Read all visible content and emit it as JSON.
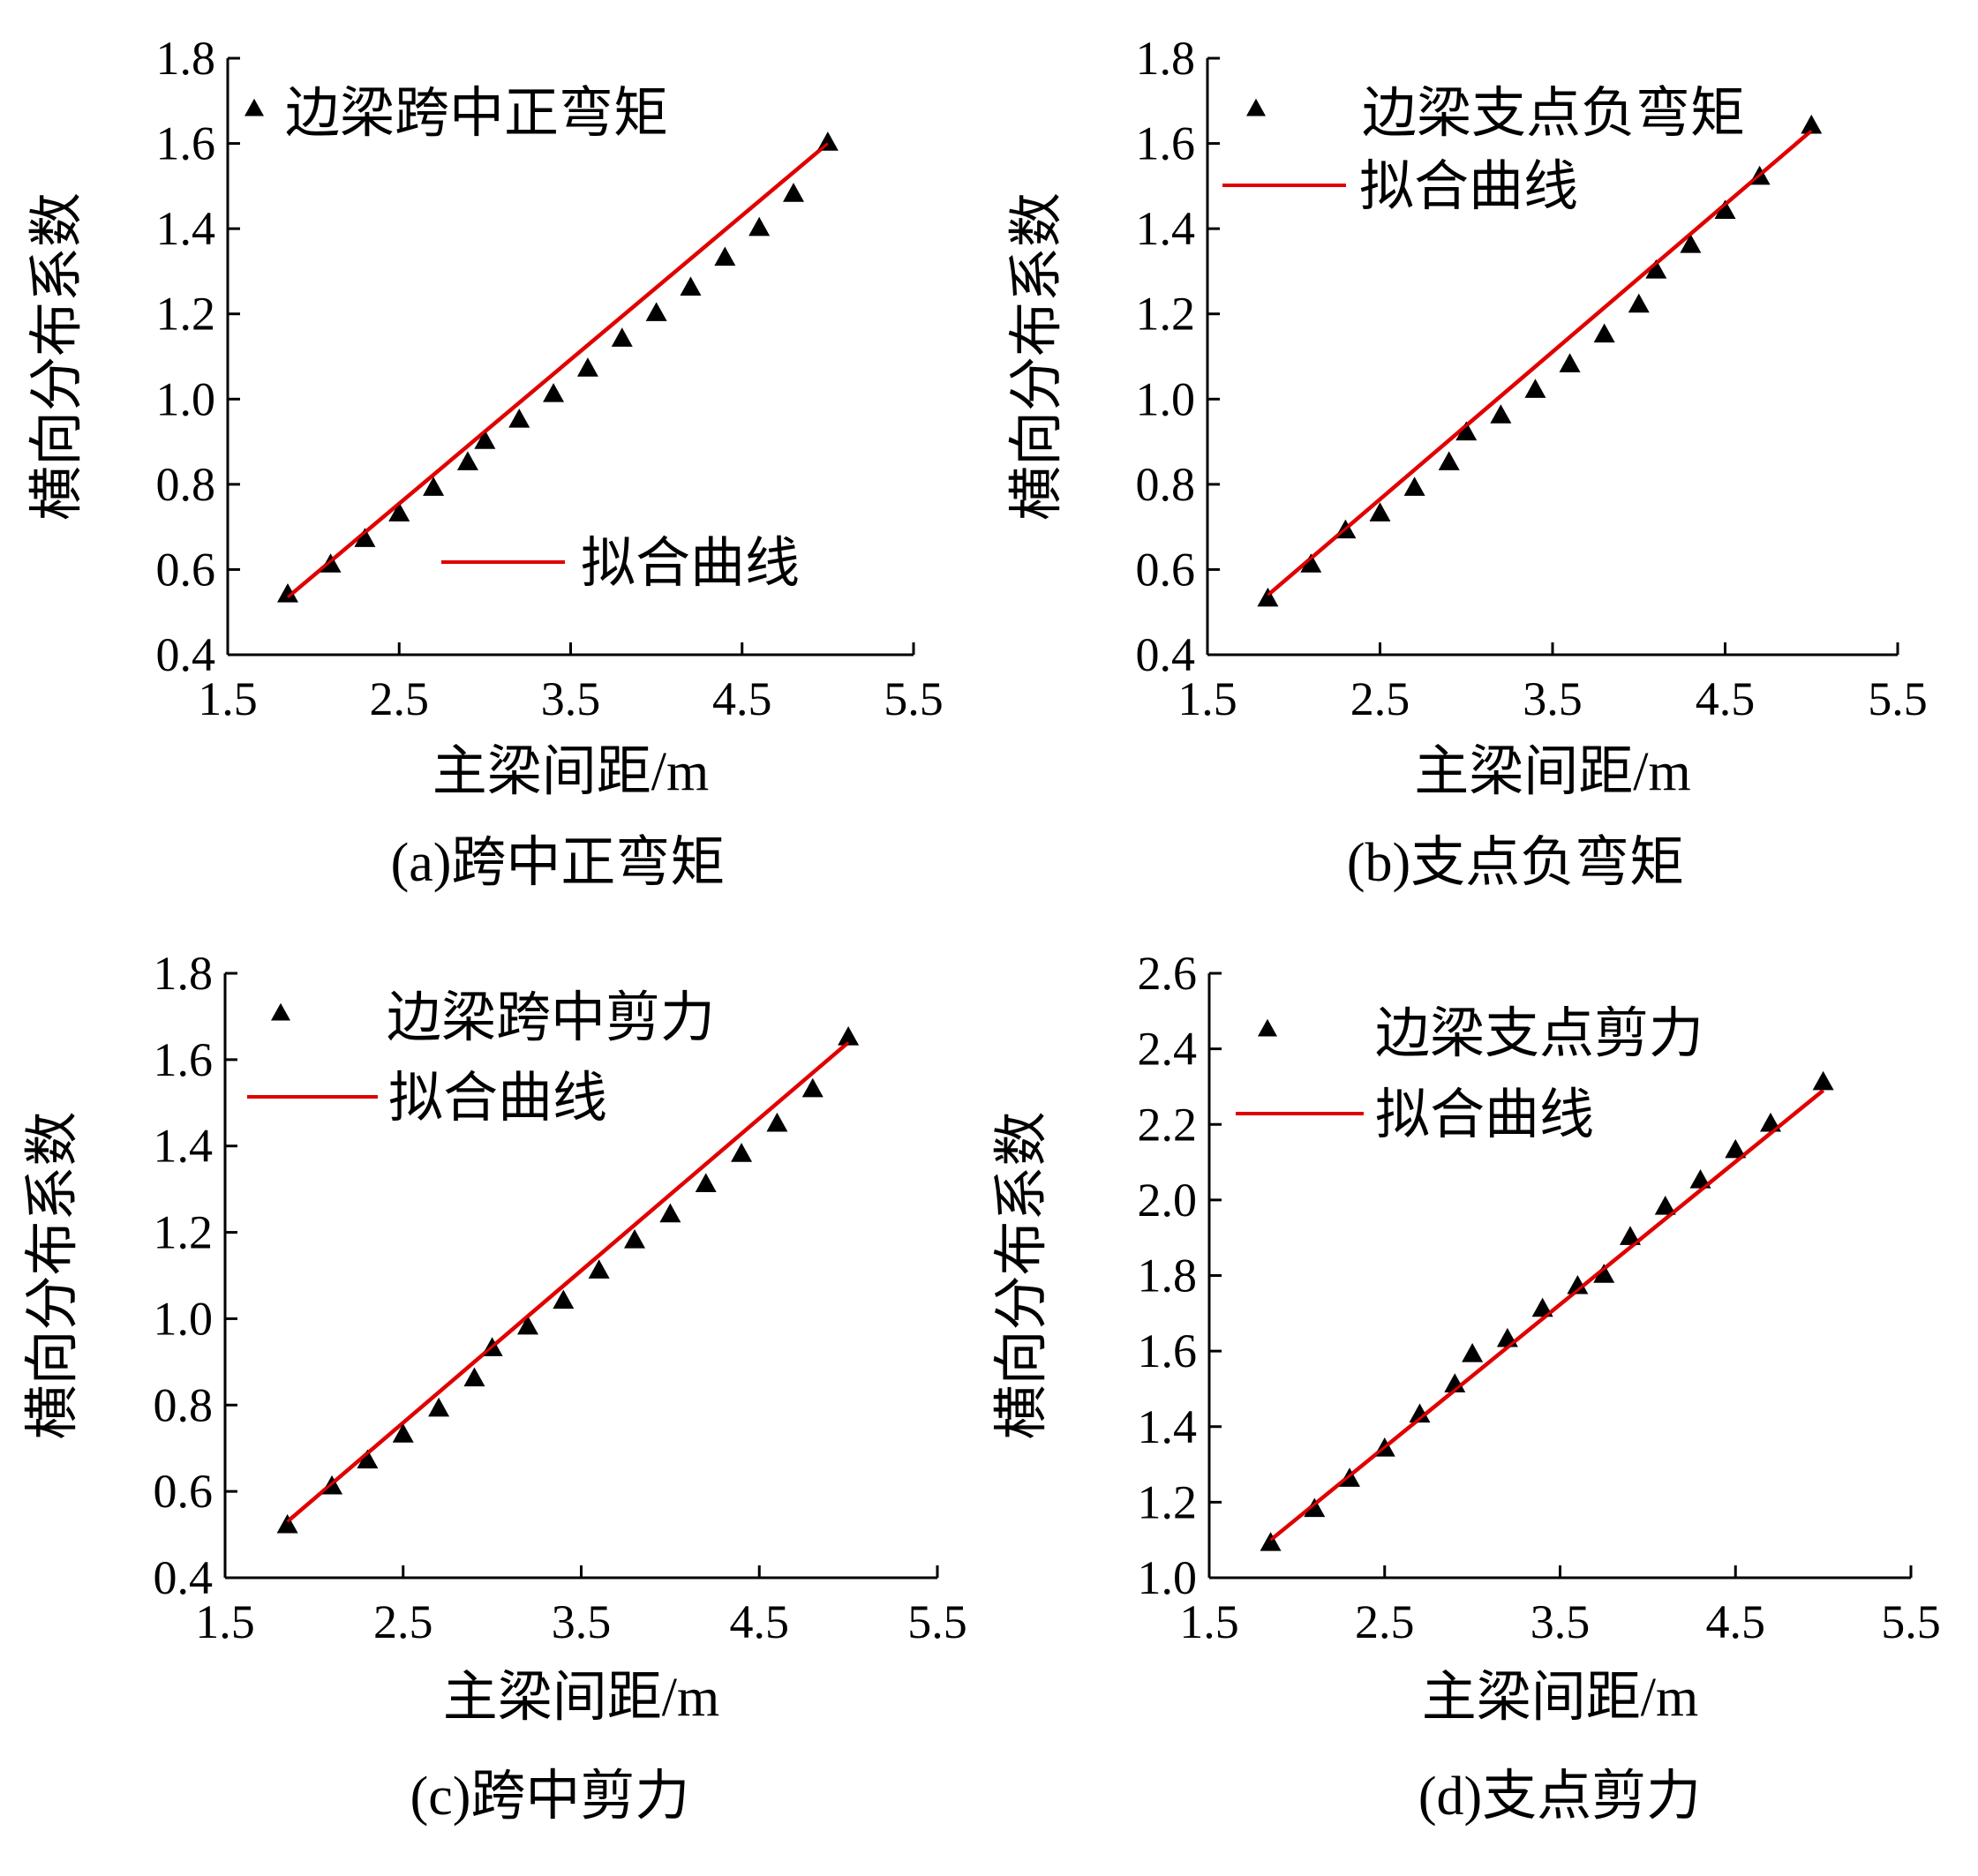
{
  "chart_data": [
    {
      "type": "scatter",
      "caption": "(a)跨中正弯矩",
      "xlabel": "主梁间距/m",
      "ylabel": "横向分布系数",
      "xlim": [
        1.5,
        5.5
      ],
      "ylim": [
        0.4,
        1.8
      ],
      "xticks": [
        "1.5",
        "2.5",
        "3.5",
        "4.5",
        "5.5"
      ],
      "yticks": [
        "0.4",
        "0.6",
        "0.8",
        "1.0",
        "1.2",
        "1.4",
        "1.6",
        "1.8"
      ],
      "legend": {
        "scatter": "边梁跨中正弯矩",
        "fit": "拟合曲线"
      },
      "series": [
        {
          "kind": "scatter",
          "x": [
            1.85,
            2.1,
            2.3,
            2.5,
            2.7,
            2.9,
            3.0,
            3.2,
            3.4,
            3.6,
            3.8,
            4.0,
            4.2,
            4.4,
            4.6,
            4.8,
            5.0
          ],
          "y": [
            0.54,
            0.61,
            0.67,
            0.73,
            0.79,
            0.85,
            0.9,
            0.95,
            1.01,
            1.07,
            1.14,
            1.2,
            1.26,
            1.33,
            1.4,
            1.48,
            1.6
          ]
        },
        {
          "kind": "fit",
          "x": [
            1.85,
            5.0
          ],
          "y": [
            0.535,
            1.6
          ]
        }
      ]
    },
    {
      "type": "scatter",
      "caption": "(b)支点负弯矩",
      "xlabel": "主梁间距/m",
      "ylabel": "横向分布系数",
      "xlim": [
        1.5,
        5.5
      ],
      "ylim": [
        0.4,
        1.8
      ],
      "xticks": [
        "1.5",
        "2.5",
        "3.5",
        "4.5",
        "5.5"
      ],
      "yticks": [
        "0.4",
        "0.6",
        "0.8",
        "1.0",
        "1.2",
        "1.4",
        "1.6",
        "1.8"
      ],
      "legend": {
        "scatter": "边梁支点负弯矩",
        "fit": "拟合曲线"
      },
      "series": [
        {
          "kind": "scatter",
          "x": [
            1.85,
            2.1,
            2.3,
            2.5,
            2.7,
            2.9,
            3.0,
            3.2,
            3.4,
            3.6,
            3.8,
            4.0,
            4.1,
            4.3,
            4.5,
            4.7,
            5.0
          ],
          "y": [
            0.53,
            0.61,
            0.69,
            0.73,
            0.79,
            0.85,
            0.92,
            0.96,
            1.02,
            1.08,
            1.15,
            1.22,
            1.3,
            1.36,
            1.44,
            1.52,
            1.64
          ]
        },
        {
          "kind": "fit",
          "x": [
            1.85,
            5.0
          ],
          "y": [
            0.54,
            1.63
          ]
        }
      ]
    },
    {
      "type": "scatter",
      "caption": "(c)跨中剪力",
      "xlabel": "主梁间距/m",
      "ylabel": "横向分布系数",
      "xlim": [
        1.5,
        5.5
      ],
      "ylim": [
        0.4,
        1.8
      ],
      "xticks": [
        "1.5",
        "2.5",
        "3.5",
        "4.5",
        "5.5"
      ],
      "yticks": [
        "0.4",
        "0.6",
        "0.8",
        "1.0",
        "1.2",
        "1.4",
        "1.6",
        "1.8"
      ],
      "legend": {
        "scatter": "边梁跨中剪力",
        "fit": "拟合曲线"
      },
      "series": [
        {
          "kind": "scatter",
          "x": [
            1.85,
            2.1,
            2.3,
            2.5,
            2.7,
            2.9,
            3.0,
            3.2,
            3.4,
            3.6,
            3.8,
            4.0,
            4.2,
            4.4,
            4.6,
            4.8,
            5.0
          ],
          "y": [
            0.52,
            0.61,
            0.67,
            0.73,
            0.79,
            0.86,
            0.93,
            0.98,
            1.04,
            1.11,
            1.18,
            1.24,
            1.31,
            1.38,
            1.45,
            1.53,
            1.65
          ]
        },
        {
          "kind": "fit",
          "x": [
            1.85,
            5.0
          ],
          "y": [
            0.53,
            1.64
          ]
        }
      ]
    },
    {
      "type": "scatter",
      "caption": "(d)支点剪力",
      "xlabel": "主梁间距/m",
      "ylabel": "横向分布系数",
      "xlim": [
        1.5,
        5.5
      ],
      "ylim": [
        1.0,
        2.6
      ],
      "xticks": [
        "1.5",
        "2.5",
        "3.5",
        "4.5",
        "5.5"
      ],
      "yticks": [
        "1.0",
        "1.2",
        "1.4",
        "1.6",
        "1.8",
        "2.0",
        "2.2",
        "2.4",
        "2.6"
      ],
      "legend": {
        "scatter": "边梁支点剪力",
        "fit": "拟合曲线"
      },
      "series": [
        {
          "kind": "scatter",
          "x": [
            1.85,
            2.1,
            2.3,
            2.5,
            2.7,
            2.9,
            3.0,
            3.2,
            3.4,
            3.6,
            3.75,
            3.9,
            4.1,
            4.3,
            4.5,
            4.7,
            5.0
          ],
          "y": [
            1.09,
            1.18,
            1.26,
            1.34,
            1.43,
            1.51,
            1.59,
            1.63,
            1.71,
            1.77,
            1.8,
            1.9,
            1.98,
            2.05,
            2.13,
            2.2,
            2.31
          ]
        },
        {
          "kind": "fit",
          "x": [
            1.85,
            5.0
          ],
          "y": [
            1.1,
            2.29
          ]
        }
      ]
    }
  ]
}
